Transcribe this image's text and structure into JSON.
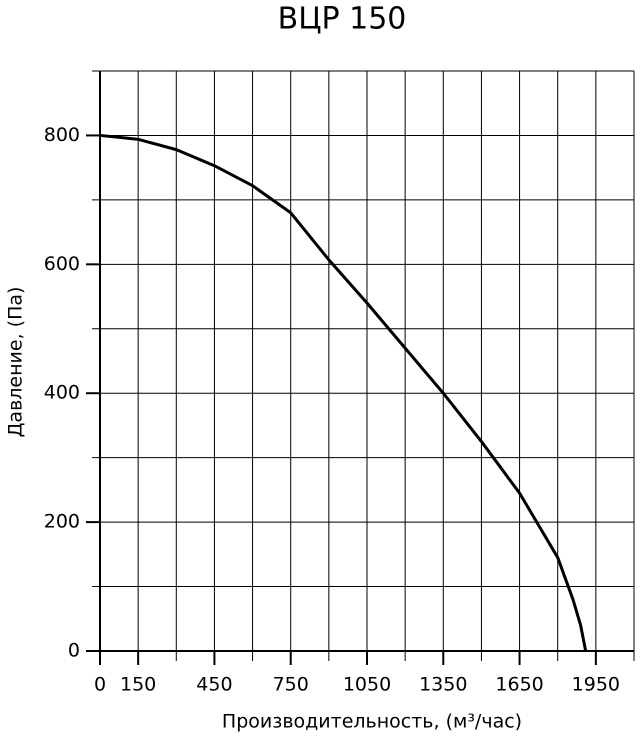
{
  "chart_data": {
    "type": "line",
    "title": "ВЦР 150",
    "x_label": "Производительность, (м³/час)",
    "y_label": "Давление, (Па)",
    "x": [
      0,
      150,
      300,
      450,
      600,
      750,
      900,
      1050,
      1200,
      1350,
      1500,
      1650,
      1800,
      1860,
      1890,
      1910
    ],
    "series": [
      {
        "name": "ВЦР 150",
        "color": "#000000",
        "values": [
          800,
          794,
          778,
          753,
          722,
          680,
          607,
          540,
          470,
          400,
          325,
          245,
          145,
          80,
          40,
          0
        ]
      }
    ],
    "xlim": [
      0,
      2100
    ],
    "ylim": [
      0,
      900
    ],
    "xticks": [
      0,
      150,
      450,
      750,
      1050,
      1350,
      1650,
      1950
    ],
    "yticks": [
      0,
      200,
      400,
      600,
      800
    ],
    "xgrid": [
      0,
      150,
      300,
      450,
      600,
      750,
      900,
      1050,
      1200,
      1350,
      1500,
      1650,
      1800,
      1950,
      2100
    ],
    "ygrid": [
      0,
      100,
      200,
      300,
      400,
      500,
      600,
      700,
      800,
      900
    ],
    "grid": true
  }
}
